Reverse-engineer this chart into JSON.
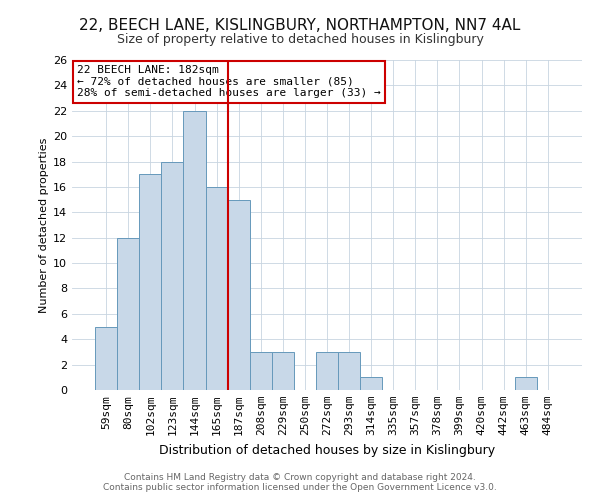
{
  "title1": "22, BEECH LANE, KISLINGBURY, NORTHAMPTON, NN7 4AL",
  "title2": "Size of property relative to detached houses in Kislingbury",
  "xlabel": "Distribution of detached houses by size in Kislingbury",
  "ylabel": "Number of detached properties",
  "bar_labels": [
    "59sqm",
    "80sqm",
    "102sqm",
    "123sqm",
    "144sqm",
    "165sqm",
    "187sqm",
    "208sqm",
    "229sqm",
    "250sqm",
    "272sqm",
    "293sqm",
    "314sqm",
    "335sqm",
    "357sqm",
    "378sqm",
    "399sqm",
    "420sqm",
    "442sqm",
    "463sqm",
    "484sqm"
  ],
  "bar_values": [
    5,
    12,
    17,
    18,
    22,
    16,
    15,
    3,
    3,
    0,
    3,
    3,
    1,
    0,
    0,
    0,
    0,
    0,
    0,
    1,
    0
  ],
  "bar_color": "#c8d8e8",
  "bar_edgecolor": "#6699bb",
  "vline_color": "#cc0000",
  "ylim": [
    0,
    26
  ],
  "yticks": [
    0,
    2,
    4,
    6,
    8,
    10,
    12,
    14,
    16,
    18,
    20,
    22,
    24,
    26
  ],
  "annotation_title": "22 BEECH LANE: 182sqm",
  "annotation_line1": "← 72% of detached houses are smaller (85)",
  "annotation_line2": "28% of semi-detached houses are larger (33) →",
  "annotation_box_color": "#ffffff",
  "annotation_box_edgecolor": "#cc0000",
  "footer1": "Contains HM Land Registry data © Crown copyright and database right 2024.",
  "footer2": "Contains public sector information licensed under the Open Government Licence v3.0.",
  "background_color": "#ffffff",
  "grid_color": "#c8d4e0",
  "title1_fontsize": 11,
  "title2_fontsize": 9,
  "xlabel_fontsize": 9,
  "ylabel_fontsize": 8,
  "tick_fontsize": 8,
  "footer_fontsize": 6.5
}
